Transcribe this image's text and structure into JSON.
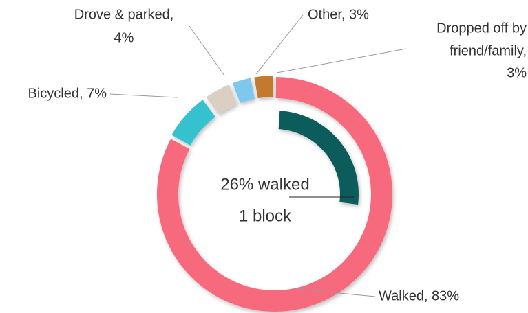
{
  "chart_data": {
    "type": "donut",
    "values": [
      83,
      7,
      4,
      3,
      3
    ],
    "value_labels": [
      [
        "Walked, 83%"
      ],
      [
        "Bicycled, 7%"
      ],
      [
        "Drove & parked,",
        "4%"
      ],
      [
        "Other, 3%"
      ],
      [
        "Dropped off by",
        "friend/family,",
        "3%"
      ]
    ],
    "colors": [
      "#f76b7e",
      "#35c2ce",
      "#d9d0c3",
      "#7cc8ef",
      "#c47a2e"
    ],
    "inner": {
      "value": 26,
      "color": "#0d5c5c",
      "label": [
        "26% walked",
        "1 block"
      ]
    }
  }
}
